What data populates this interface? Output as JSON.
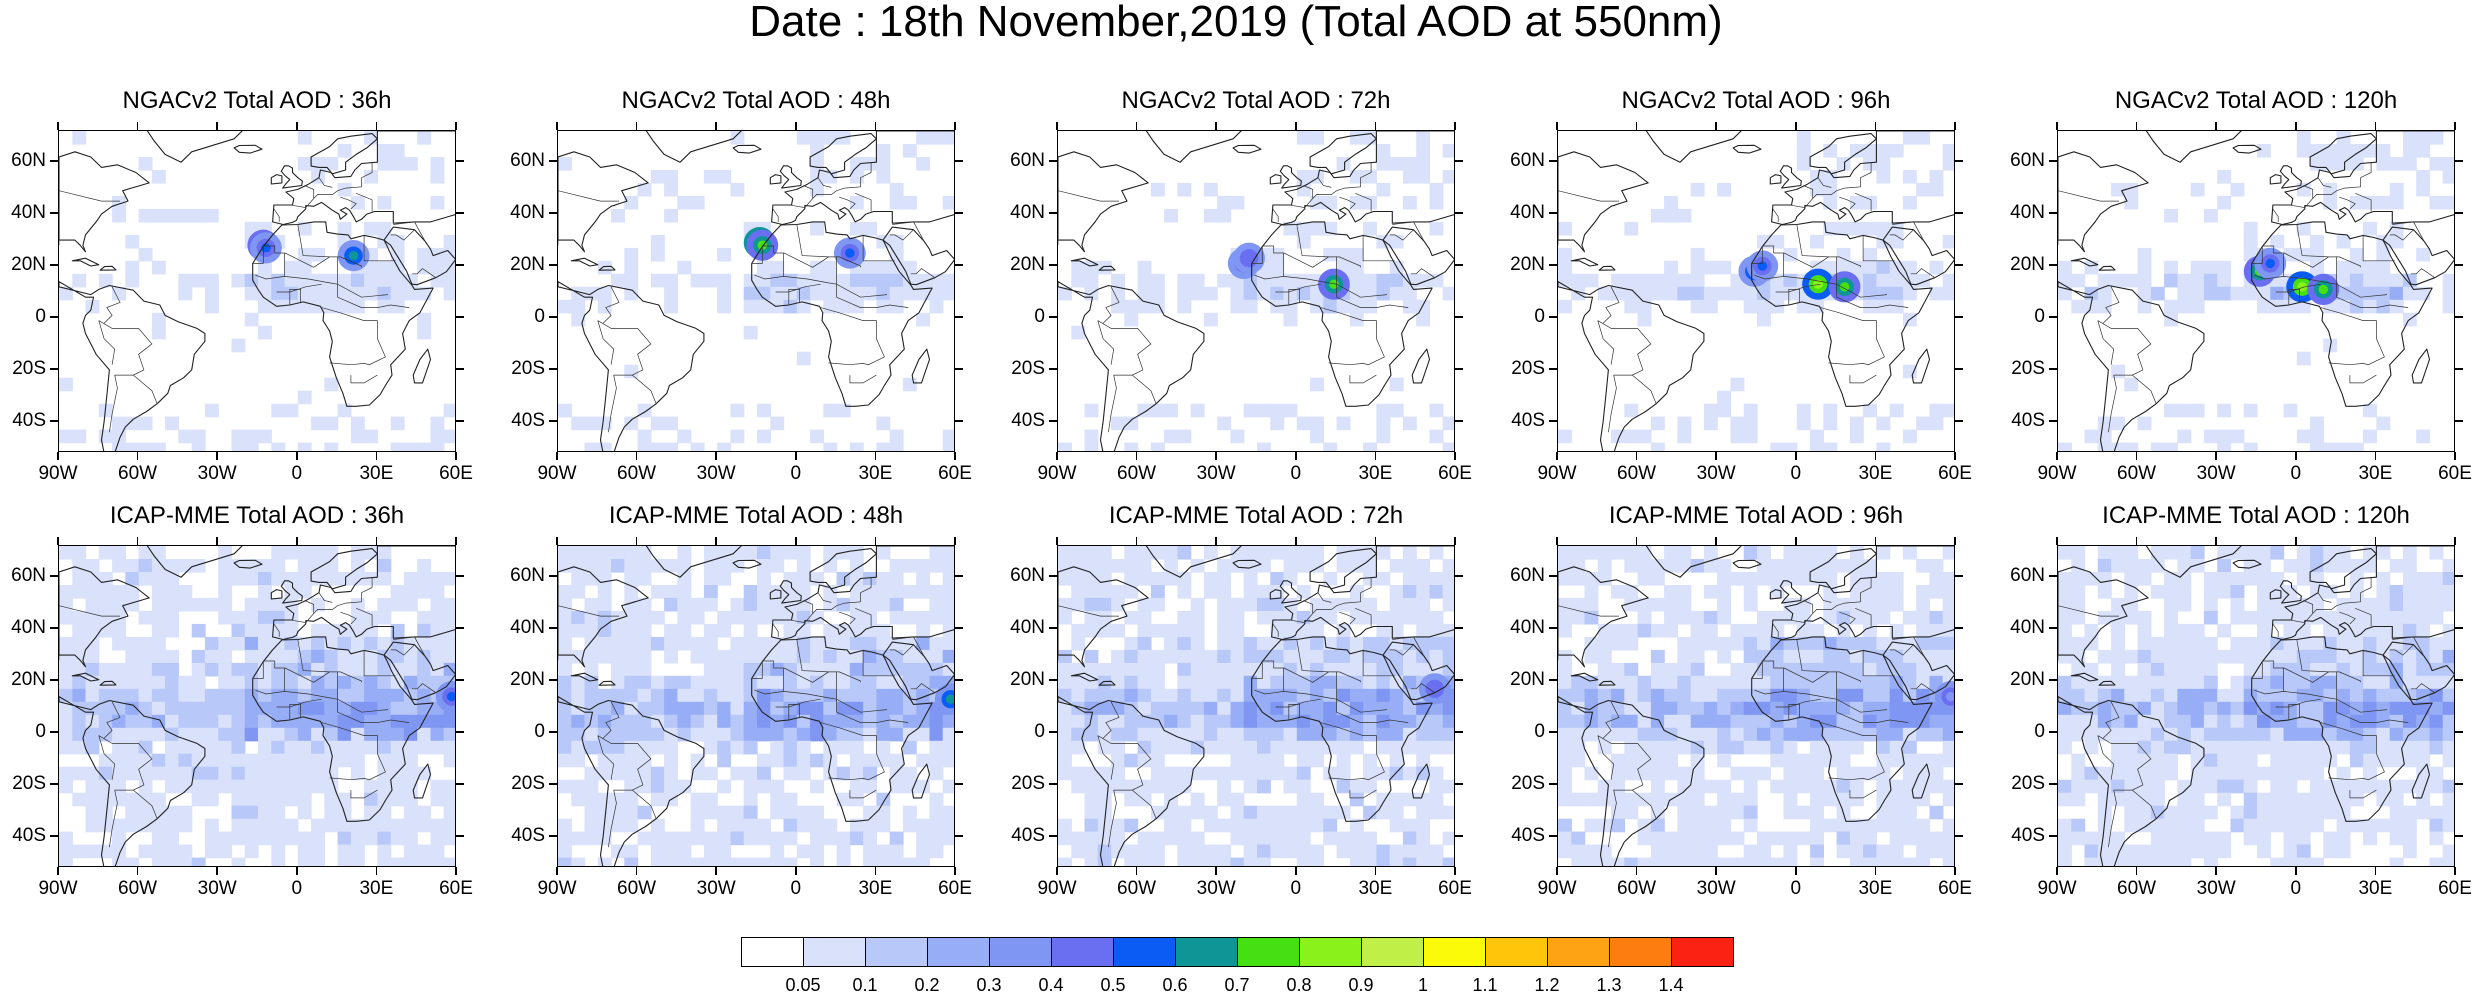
{
  "title": "Date : 18th November,2019 (Total AOD at 550nm)",
  "panels": [
    {
      "title": "NGACv2 Total AOD : 36h"
    },
    {
      "title": "NGACv2 Total AOD : 48h"
    },
    {
      "title": "NGACv2 Total AOD : 72h"
    },
    {
      "title": "NGACv2 Total AOD : 96h"
    },
    {
      "title": "NGACv2 Total AOD : 120h"
    },
    {
      "title": "ICAP-MME Total AOD : 36h"
    },
    {
      "title": "ICAP-MME Total AOD : 48h"
    },
    {
      "title": "ICAP-MME Total AOD : 72h"
    },
    {
      "title": "ICAP-MME Total AOD : 96h"
    },
    {
      "title": "ICAP-MME Total AOD : 120h"
    }
  ],
  "axes": {
    "lat_ticks": [
      "60N",
      "40N",
      "20N",
      "0",
      "20S",
      "40S"
    ],
    "lon_ticks": [
      "90W",
      "60W",
      "30W",
      "0",
      "30E",
      "60E"
    ],
    "lat_values": [
      60,
      40,
      20,
      0,
      -20,
      -40
    ],
    "lon_values": [
      -90,
      -60,
      -30,
      0,
      30,
      60
    ],
    "lat_range": [
      -52,
      72
    ],
    "lon_range": [
      -90,
      60
    ]
  },
  "colorbar": {
    "labels": [
      "0.05",
      "0.1",
      "0.2",
      "0.3",
      "0.4",
      "0.5",
      "0.6",
      "0.7",
      "0.8",
      "0.9",
      "1",
      "1.1",
      "1.2",
      "1.3",
      "1.4"
    ],
    "colors": [
      "#ffffff",
      "#d9e1fb",
      "#b8c8f8",
      "#97aef6",
      "#7f96f2",
      "#6a6ef0",
      "#0a5cf5",
      "#0e9696",
      "#46e012",
      "#8af21a",
      "#c0f048",
      "#fbfb09",
      "#fec50b",
      "#fea313",
      "#fd7d0f",
      "#fb2213"
    ]
  }
}
